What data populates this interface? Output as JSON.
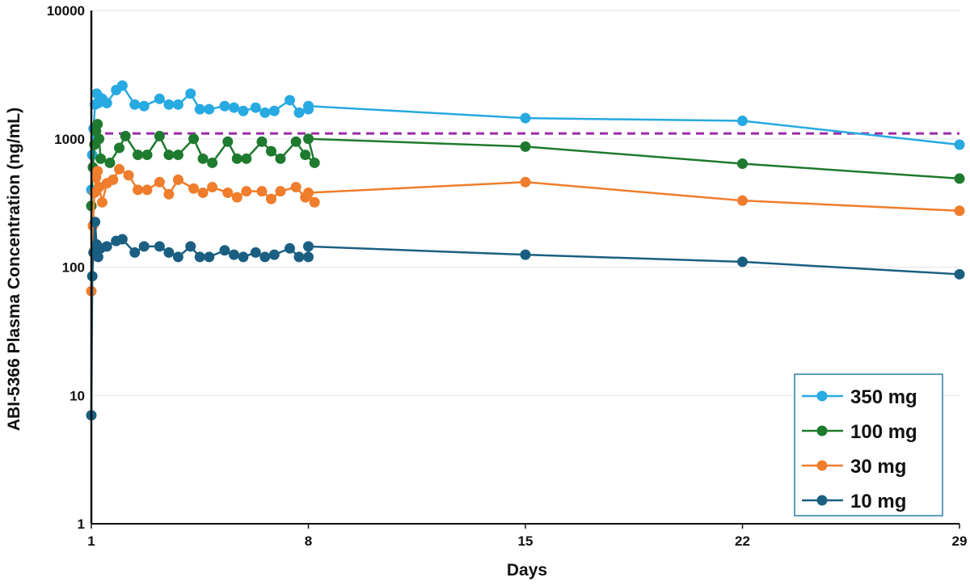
{
  "chart_data": {
    "type": "line",
    "ylabel": "ABI-5366 Plasma Concentration (ng/mL)",
    "xlabel": "Days",
    "y_scale": "log",
    "ylim": [
      1,
      10000
    ],
    "xlim": [
      1,
      29
    ],
    "x_ticks": [
      1,
      8,
      15,
      22,
      29
    ],
    "y_ticks": [
      1,
      10,
      100,
      1000,
      10000
    ],
    "grid": "horizontal",
    "legend_position": "bottom-right",
    "reference_line": {
      "y": 1100,
      "style": "dashed",
      "color": "#9b2aa8"
    },
    "series": [
      {
        "name": "350 mg",
        "color": "#27a9e1",
        "points": [
          [
            1,
            400
          ],
          [
            1.03,
            750
          ],
          [
            1.07,
            1200
          ],
          [
            1.12,
            1850
          ],
          [
            1.17,
            2250
          ],
          [
            1.22,
            1900
          ],
          [
            1.27,
            2100
          ],
          [
            1.35,
            2050
          ],
          [
            1.5,
            1900
          ],
          [
            1.8,
            2400
          ],
          [
            2.0,
            2600
          ],
          [
            2.4,
            1850
          ],
          [
            2.7,
            1800
          ],
          [
            3.2,
            2050
          ],
          [
            3.5,
            1850
          ],
          [
            3.8,
            1850
          ],
          [
            4.2,
            2250
          ],
          [
            4.5,
            1700
          ],
          [
            4.8,
            1700
          ],
          [
            5.3,
            1800
          ],
          [
            5.6,
            1750
          ],
          [
            5.9,
            1650
          ],
          [
            6.3,
            1750
          ],
          [
            6.6,
            1600
          ],
          [
            6.9,
            1650
          ],
          [
            7.4,
            2000
          ],
          [
            7.7,
            1600
          ],
          [
            8.0,
            1700
          ],
          [
            8.0,
            1800
          ],
          [
            15,
            1450
          ],
          [
            22,
            1380
          ],
          [
            29,
            900
          ]
        ]
      },
      {
        "name": "100 mg",
        "color": "#1e7a2e",
        "points": [
          [
            1,
            300
          ],
          [
            1.05,
            600
          ],
          [
            1.1,
            900
          ],
          [
            1.15,
            1150
          ],
          [
            1.2,
            1300
          ],
          [
            1.25,
            1000
          ],
          [
            1.3,
            700
          ],
          [
            1.6,
            650
          ],
          [
            1.9,
            850
          ],
          [
            2.1,
            1050
          ],
          [
            2.5,
            750
          ],
          [
            2.8,
            750
          ],
          [
            3.2,
            1050
          ],
          [
            3.5,
            750
          ],
          [
            3.8,
            750
          ],
          [
            4.3,
            1000
          ],
          [
            4.6,
            700
          ],
          [
            4.9,
            650
          ],
          [
            5.4,
            950
          ],
          [
            5.7,
            700
          ],
          [
            6.0,
            700
          ],
          [
            6.5,
            950
          ],
          [
            6.8,
            800
          ],
          [
            7.1,
            700
          ],
          [
            7.6,
            950
          ],
          [
            7.9,
            750
          ],
          [
            8.2,
            650
          ],
          [
            8.0,
            1000
          ],
          [
            15,
            870
          ],
          [
            22,
            640
          ],
          [
            29,
            490
          ]
        ]
      },
      {
        "name": "30 mg",
        "color": "#ef7d2c",
        "points": [
          [
            1,
            65
          ],
          [
            1.05,
            210
          ],
          [
            1.1,
            380
          ],
          [
            1.15,
            500
          ],
          [
            1.2,
            560
          ],
          [
            1.25,
            420
          ],
          [
            1.35,
            320
          ],
          [
            1.5,
            450
          ],
          [
            1.7,
            480
          ],
          [
            1.9,
            580
          ],
          [
            2.2,
            520
          ],
          [
            2.5,
            400
          ],
          [
            2.8,
            400
          ],
          [
            3.2,
            460
          ],
          [
            3.5,
            370
          ],
          [
            3.8,
            480
          ],
          [
            4.3,
            410
          ],
          [
            4.6,
            380
          ],
          [
            4.9,
            420
          ],
          [
            5.4,
            380
          ],
          [
            5.7,
            350
          ],
          [
            6.0,
            390
          ],
          [
            6.5,
            390
          ],
          [
            6.8,
            340
          ],
          [
            7.1,
            390
          ],
          [
            7.6,
            420
          ],
          [
            7.9,
            350
          ],
          [
            8.2,
            320
          ],
          [
            8.0,
            380
          ],
          [
            15,
            460
          ],
          [
            22,
            330
          ],
          [
            29,
            275
          ]
        ]
      },
      {
        "name": "10 mg",
        "color": "#1a5f82",
        "points": [
          [
            1,
            7
          ],
          [
            1.03,
            85
          ],
          [
            1.07,
            130
          ],
          [
            1.12,
            225
          ],
          [
            1.17,
            150
          ],
          [
            1.22,
            120
          ],
          [
            1.3,
            140
          ],
          [
            1.5,
            145
          ],
          [
            1.8,
            160
          ],
          [
            2.0,
            165
          ],
          [
            2.4,
            130
          ],
          [
            2.7,
            145
          ],
          [
            3.2,
            145
          ],
          [
            3.5,
            130
          ],
          [
            3.8,
            120
          ],
          [
            4.2,
            145
          ],
          [
            4.5,
            120
          ],
          [
            4.8,
            120
          ],
          [
            5.3,
            135
          ],
          [
            5.6,
            125
          ],
          [
            5.9,
            120
          ],
          [
            6.3,
            130
          ],
          [
            6.6,
            120
          ],
          [
            6.9,
            125
          ],
          [
            7.4,
            140
          ],
          [
            7.7,
            120
          ],
          [
            8.0,
            120
          ],
          [
            8.0,
            145
          ],
          [
            15,
            125
          ],
          [
            22,
            110
          ],
          [
            29,
            88
          ]
        ]
      }
    ]
  }
}
